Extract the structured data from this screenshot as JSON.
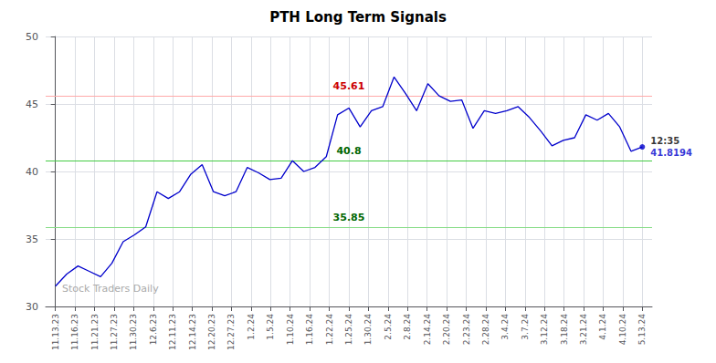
{
  "chart_data": {
    "type": "line",
    "title": "PTH Long Term Signals",
    "color": "#0000cc",
    "x": [
      0,
      0.576923,
      1.153846,
      1.730769,
      2.307692,
      2.884615,
      3.461538,
      4.038462,
      4.615385,
      5.192308,
      5.769231,
      6.346154,
      6.923077,
      7.5,
      8.076923,
      8.653846,
      9.230769,
      9.807692,
      10.384615,
      10.961538,
      11.538462,
      12.115385,
      12.692308,
      13.269231,
      13.846154,
      14.423077,
      15,
      15.576923,
      16.153846,
      16.730769,
      17.307692,
      17.884615,
      18.461538,
      19.038462,
      19.615385,
      20.192308,
      20.769231,
      21.346154,
      21.923077,
      22.5,
      23.076923,
      23.653846,
      24.230769,
      24.807692,
      25.384615,
      25.961538,
      26.538462,
      27.115385,
      27.692308,
      28.269231,
      28.846154,
      29.423077,
      30
    ],
    "values": [
      31.5,
      32.4,
      33.0,
      32.6,
      32.2,
      33.2,
      34.8,
      35.3,
      35.9,
      38.5,
      38.0,
      38.5,
      39.8,
      40.5,
      38.5,
      38.2,
      38.5,
      40.3,
      39.9,
      39.4,
      39.5,
      40.8,
      40.0,
      40.3,
      41.1,
      44.2,
      44.7,
      43.3,
      44.5,
      44.8,
      47.0,
      45.8,
      44.5,
      46.5,
      45.6,
      45.2,
      45.3,
      43.2,
      44.5,
      44.3,
      44.5,
      44.8,
      44.0,
      43.0,
      41.9,
      42.3,
      42.5,
      44.2,
      43.8,
      44.3,
      43.3,
      41.5,
      41.8194
    ],
    "xlim": [
      -0.5,
      30.5
    ],
    "xticks": [
      {
        "value": 0,
        "label": "11.13.23"
      },
      {
        "value": 1,
        "label": "11.16.23"
      },
      {
        "value": 2,
        "label": "11.21.23"
      },
      {
        "value": 3,
        "label": "11.27.23"
      },
      {
        "value": 4,
        "label": "11.30.23"
      },
      {
        "value": 5,
        "label": "12.6.23"
      },
      {
        "value": 6,
        "label": "12.11.23"
      },
      {
        "value": 7,
        "label": "12.14.23"
      },
      {
        "value": 8,
        "label": "12.20.23"
      },
      {
        "value": 9,
        "label": "12.27.23"
      },
      {
        "value": 10,
        "label": "1.2.24"
      },
      {
        "value": 11,
        "label": "1.5.24"
      },
      {
        "value": 12,
        "label": "1.10.24"
      },
      {
        "value": 13,
        "label": "1.16.24"
      },
      {
        "value": 14,
        "label": "1.22.24"
      },
      {
        "value": 15,
        "label": "1.25.24"
      },
      {
        "value": 16,
        "label": "1.30.24"
      },
      {
        "value": 17,
        "label": "2.5.24"
      },
      {
        "value": 18,
        "label": "2.8.24"
      },
      {
        "value": 19,
        "label": "2.14.24"
      },
      {
        "value": 20,
        "label": "2.20.24"
      },
      {
        "value": 21,
        "label": "2.23.24"
      },
      {
        "value": 22,
        "label": "2.28.24"
      },
      {
        "value": 23,
        "label": "3.4.24"
      },
      {
        "value": 24,
        "label": "3.7.24"
      },
      {
        "value": 25,
        "label": "3.12.24"
      },
      {
        "value": 26,
        "label": "3.18.24"
      },
      {
        "value": 27,
        "label": "3.21.24"
      },
      {
        "value": 28,
        "label": "4.1.24"
      },
      {
        "value": 29,
        "label": "4.10.24"
      },
      {
        "value": 30,
        "label": "5.13.24"
      }
    ],
    "ylim": [
      30,
      50
    ],
    "yticks": [
      30,
      35,
      40,
      45,
      50
    ],
    "grid": true,
    "hlines": [
      {
        "y": 45.61,
        "color": "#ffaaaa",
        "label": "45.61",
        "label_color": "#cc0000"
      },
      {
        "y": 40.8,
        "color": "#44cc44",
        "label": "40.8",
        "label_color": "#006600"
      },
      {
        "y": 35.85,
        "color": "#88dd88",
        "label": "35.85",
        "label_color": "#006600"
      }
    ],
    "annotations": [
      {
        "text": "12:35",
        "color": "#000000"
      },
      {
        "text": "41.8194",
        "color": "#0000cc"
      }
    ],
    "watermark": "Stock Traders Daily"
  }
}
